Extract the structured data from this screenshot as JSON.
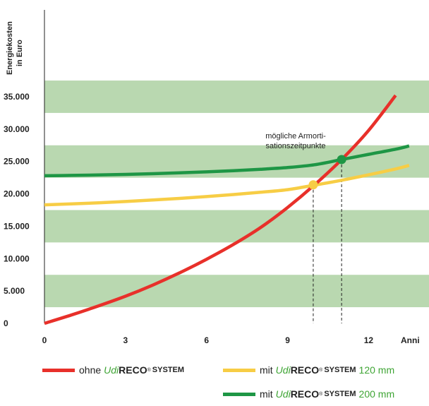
{
  "chart_data": {
    "type": "line",
    "ylabel_lines": [
      "Energiekosten",
      "in Euro"
    ],
    "xlabel": "Anni",
    "xlim": [
      0,
      14
    ],
    "ylim": [
      0,
      35000
    ],
    "x_ticks": [
      {
        "value": 0,
        "label": "0"
      },
      {
        "value": 3,
        "label": "3"
      },
      {
        "value": 6,
        "label": "6"
      },
      {
        "value": 9,
        "label": "9"
      },
      {
        "value": 12,
        "label": "12"
      }
    ],
    "y_ticks": [
      {
        "value": 0,
        "label": "0"
      },
      {
        "value": 5000,
        "label": "5.000"
      },
      {
        "value": 10000,
        "label": "10.000"
      },
      {
        "value": 15000,
        "label": "15.000"
      },
      {
        "value": 20000,
        "label": "20.000"
      },
      {
        "value": 25000,
        "label": "25.000"
      },
      {
        "value": 30000,
        "label": "30.000"
      },
      {
        "value": 35000,
        "label": "35.000"
      }
    ],
    "band_color": "#b9d8b0",
    "series": [
      {
        "key": "ohne",
        "color": "#e8302a",
        "x": [
          0,
          1,
          2,
          3,
          4,
          5,
          6,
          7,
          8,
          9,
          10,
          11,
          12,
          13
        ],
        "y": [
          0,
          1300,
          2700,
          4200,
          5900,
          7800,
          9900,
          12200,
          14800,
          17900,
          21400,
          25300,
          29800,
          35200
        ]
      },
      {
        "key": "120",
        "color": "#f7cd45",
        "x": [
          0,
          1,
          2,
          3,
          4,
          5,
          6,
          7,
          8,
          9,
          10,
          11,
          12,
          13,
          13.5
        ],
        "y": [
          18300,
          18450,
          18620,
          18820,
          19050,
          19300,
          19580,
          19900,
          20250,
          20650,
          21350,
          22100,
          22950,
          23850,
          24400
        ]
      },
      {
        "key": "200",
        "color": "#1e9645",
        "x": [
          0,
          1,
          2,
          3,
          4,
          5,
          6,
          7,
          8,
          9,
          10,
          11,
          12,
          13,
          13.5
        ],
        "y": [
          22800,
          22850,
          22920,
          23010,
          23120,
          23250,
          23400,
          23580,
          23800,
          24070,
          24500,
          25300,
          26100,
          26900,
          27400
        ]
      }
    ],
    "annotation": {
      "lines": [
        "mögliche Armorti-",
        "sationszeitpunkte"
      ]
    },
    "break_even": [
      {
        "x": 9.95,
        "y": 21400,
        "color": "#f7cd45"
      },
      {
        "x": 11.0,
        "y": 25300,
        "color": "#1e9645"
      }
    ]
  },
  "legend": [
    {
      "key": "ohne",
      "color": "#e8302a",
      "prefix": "ohne",
      "brand_italic": "Udi",
      "brand_bold": "RECO",
      "brand_reg": "®",
      "brand_system": "SYSTEM",
      "suffix": ""
    },
    {
      "key": "120",
      "color": "#f7cd45",
      "prefix": "mit",
      "brand_italic": "Udi",
      "brand_bold": "RECO",
      "brand_reg": "®",
      "brand_system": "SYSTEM",
      "suffix": "120 mm"
    },
    {
      "key": "200",
      "color": "#1e9645",
      "prefix": "mit",
      "brand_italic": "Udi",
      "brand_bold": "RECO",
      "brand_reg": "®",
      "brand_system": "SYSTEM",
      "suffix": "200 mm"
    }
  ],
  "brand_color": "#3fa535"
}
